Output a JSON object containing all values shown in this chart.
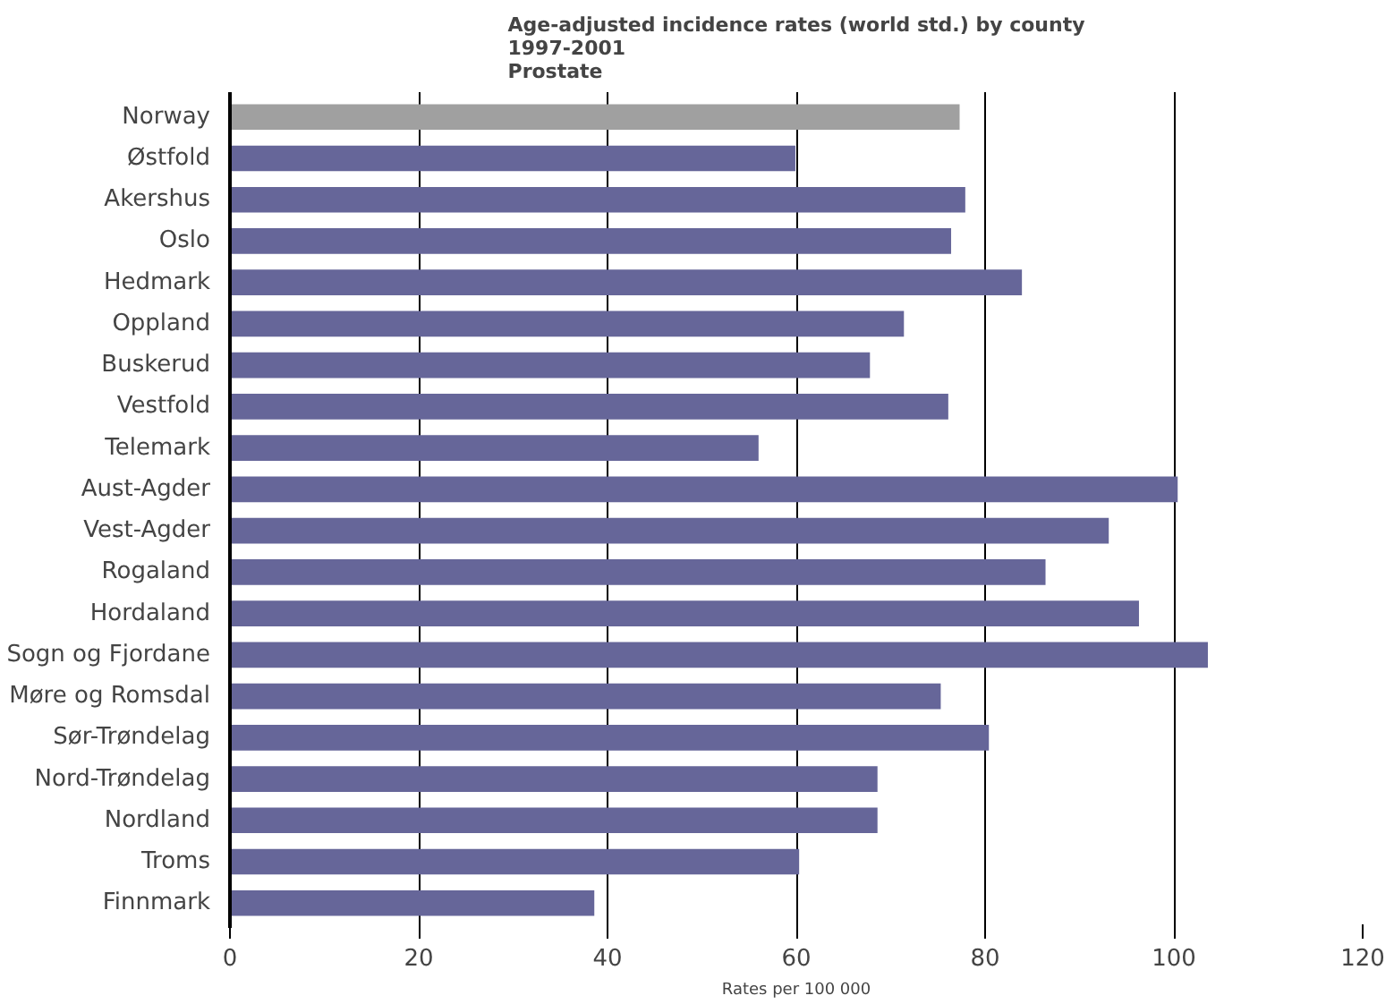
{
  "chart_data": {
    "type": "bar",
    "orientation": "horizontal",
    "title": "Age-adjusted incidence rates (world std.) by county\n1997-2001\nProstate",
    "xlabel": "Rates per 100 000",
    "categories": [
      "Norway",
      "Østfold",
      "Akershus",
      "Oslo",
      "Hedmark",
      "Oppland",
      "Buskerud",
      "Vestfold",
      "Telemark",
      "Aust-Agder",
      "Vest-Agder",
      "Rogaland",
      "Hordaland",
      "Sogn og Fjordane",
      "Møre og Romsdal",
      "Sør-Trøndelag",
      "Nord-Trøndelag",
      "Nordland",
      "Troms",
      "Finnmark"
    ],
    "values": [
      77.3,
      59.9,
      77.9,
      76.4,
      83.9,
      71.4,
      67.8,
      76.1,
      56.0,
      100.4,
      93.1,
      86.4,
      96.3,
      103.6,
      75.3,
      80.4,
      68.6,
      68.6,
      60.3,
      38.6
    ],
    "colors": [
      "#a0a0a0",
      "#666699",
      "#666699",
      "#666699",
      "#666699",
      "#666699",
      "#666699",
      "#666699",
      "#666699",
      "#666699",
      "#666699",
      "#666699",
      "#666699",
      "#666699",
      "#666699",
      "#666699",
      "#666699",
      "#666699",
      "#666699",
      "#666699"
    ],
    "xlim": [
      0,
      120
    ],
    "xticks": [
      0,
      20,
      40,
      60,
      80,
      100,
      120
    ],
    "grid": "x"
  }
}
